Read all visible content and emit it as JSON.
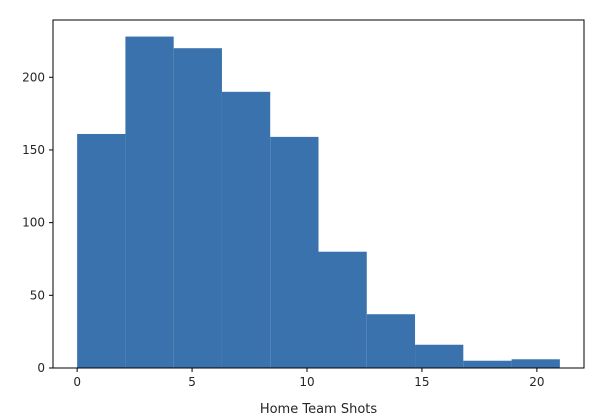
{
  "chart_data": {
    "type": "bar",
    "subtype": "histogram",
    "title": "",
    "xlabel": "Home Team Shots",
    "ylabel": "",
    "bin_edges": [
      0,
      2.1,
      4.2,
      6.3,
      8.4,
      10.5,
      12.6,
      14.7,
      16.8,
      18.9,
      21
    ],
    "values": [
      161,
      228,
      220,
      190,
      159,
      80,
      37,
      16,
      5,
      6
    ],
    "xlim": [
      -1.05,
      22.05
    ],
    "ylim": [
      0,
      239.4
    ],
    "xticks": [
      0,
      5,
      10,
      15,
      20
    ],
    "yticks": [
      0,
      50,
      100,
      150,
      200
    ],
    "bar_color": "#3a72ad",
    "grid": false,
    "legend": "none"
  }
}
